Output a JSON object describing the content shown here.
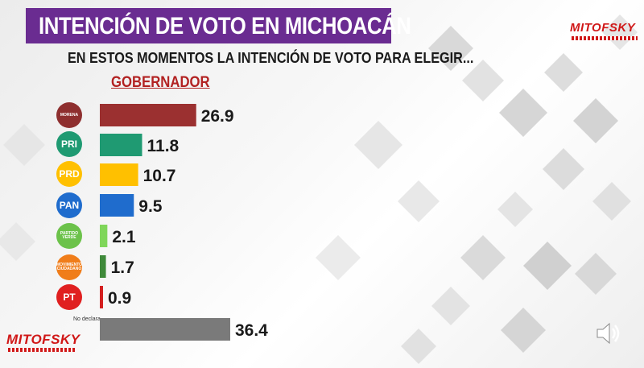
{
  "header": {
    "title": "INTENCIÓN DE VOTO EN MICHOACÁN",
    "subtitle": "EN ESTOS MOMENTOS LA INTENCIÓN DE VOTO PARA ELEGIR...",
    "office": "GOBERNADOR",
    "brand": "MITOFSKY"
  },
  "colors": {
    "title_bar": "#6a2c91",
    "office_text": "#b22222",
    "brand_red": "#d01818"
  },
  "parties": [
    {
      "badge": "MORENA",
      "color": "#8e2f2f"
    },
    {
      "badge": "PRI",
      "color": "#1f9a72"
    },
    {
      "badge": "PRD",
      "color": "#ffc000"
    },
    {
      "badge": "PAN",
      "color": "#1f6ccd"
    },
    {
      "badge": "PARTIDO VERDE",
      "color": "#6cc24a"
    },
    {
      "badge": "MOVIMIENTO CIUDADANO",
      "color": "#f07d1a"
    },
    {
      "badge": "PT",
      "color": "#e02020"
    },
    {
      "badge": "No declara",
      "color": "#777777"
    }
  ],
  "chart_data": {
    "type": "bar",
    "orientation": "horizontal",
    "categories": [
      "MORENA",
      "PRI",
      "PRD",
      "PAN",
      "PARTIDO VERDE",
      "MOVIMIENTO CIUDADANO",
      "PT",
      "No declara"
    ],
    "values": [
      26.9,
      11.8,
      10.7,
      9.5,
      2.1,
      1.7,
      0.9,
      36.4
    ],
    "value_labels": [
      "26.9",
      "11.8",
      "10.7",
      "9.5",
      "2.1",
      "1.7",
      "0.9",
      "36.4"
    ],
    "bar_colors": [
      "#9b3030",
      "#1f9a72",
      "#ffc000",
      "#1f6ccd",
      "#7fd65a",
      "#3f8a3a",
      "#d42020",
      "#7a7a7a"
    ],
    "title": "INTENCIÓN DE VOTO EN MICHOACÁN",
    "xlim": [
      0,
      40
    ],
    "grid": false,
    "legend": "none"
  }
}
